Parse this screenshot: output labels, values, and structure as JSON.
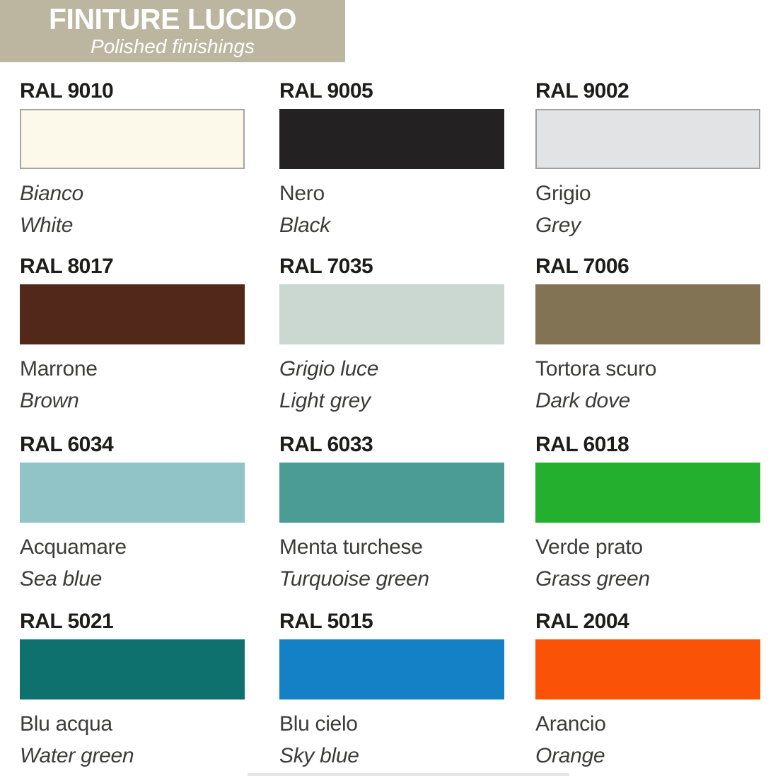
{
  "header": {
    "title": "FINITURE LUCIDO",
    "subtitle": "Polished finishings",
    "bg_color": "#BCB6A0",
    "text_color": "#FFFFFF"
  },
  "swatches": [
    {
      "code": "RAL 9010",
      "name_it": "Bianco",
      "name_en": "White",
      "color": "#FCF8EA",
      "border": "#A5A5A5",
      "italic_it": true
    },
    {
      "code": "RAL 9005",
      "name_it": "Nero",
      "name_en": "Black",
      "color": "#242122"
    },
    {
      "code": "RAL 9002",
      "name_it": "Grigio",
      "name_en": "Grey",
      "color": "#E2E3E4",
      "border": "#9E9FA0"
    },
    {
      "code": "RAL 8017",
      "name_it": "Marrone",
      "name_en": "Brown",
      "color": "#51281A"
    },
    {
      "code": "RAL 7035",
      "name_it": "Grigio luce",
      "name_en": "Light grey",
      "color": "#CBD8D1",
      "italic_it": true
    },
    {
      "code": "RAL 7006",
      "name_it": "Tortora scuro",
      "name_en": "Dark dove",
      "color": "#837355"
    },
    {
      "code": "RAL 6034",
      "name_it": "Acquamare",
      "name_en": "Sea blue",
      "color": "#91C4C7"
    },
    {
      "code": "RAL 6033",
      "name_it": "Menta turchese",
      "name_en": "Turquoise green",
      "color": "#4A9C95"
    },
    {
      "code": "RAL 6018",
      "name_it": "Verde prato",
      "name_en": "Grass green",
      "color": "#24B02E"
    },
    {
      "code": "RAL 5021",
      "name_it": "Blu acqua",
      "name_en": "Water green",
      "color": "#0E716E"
    },
    {
      "code": "RAL 5015",
      "name_it": "Blu cielo",
      "name_en": "Sky blue",
      "color": "#1480C5"
    },
    {
      "code": "RAL 2004",
      "name_it": "Arancio",
      "name_en": "Orange",
      "color": "#FA5207"
    }
  ]
}
